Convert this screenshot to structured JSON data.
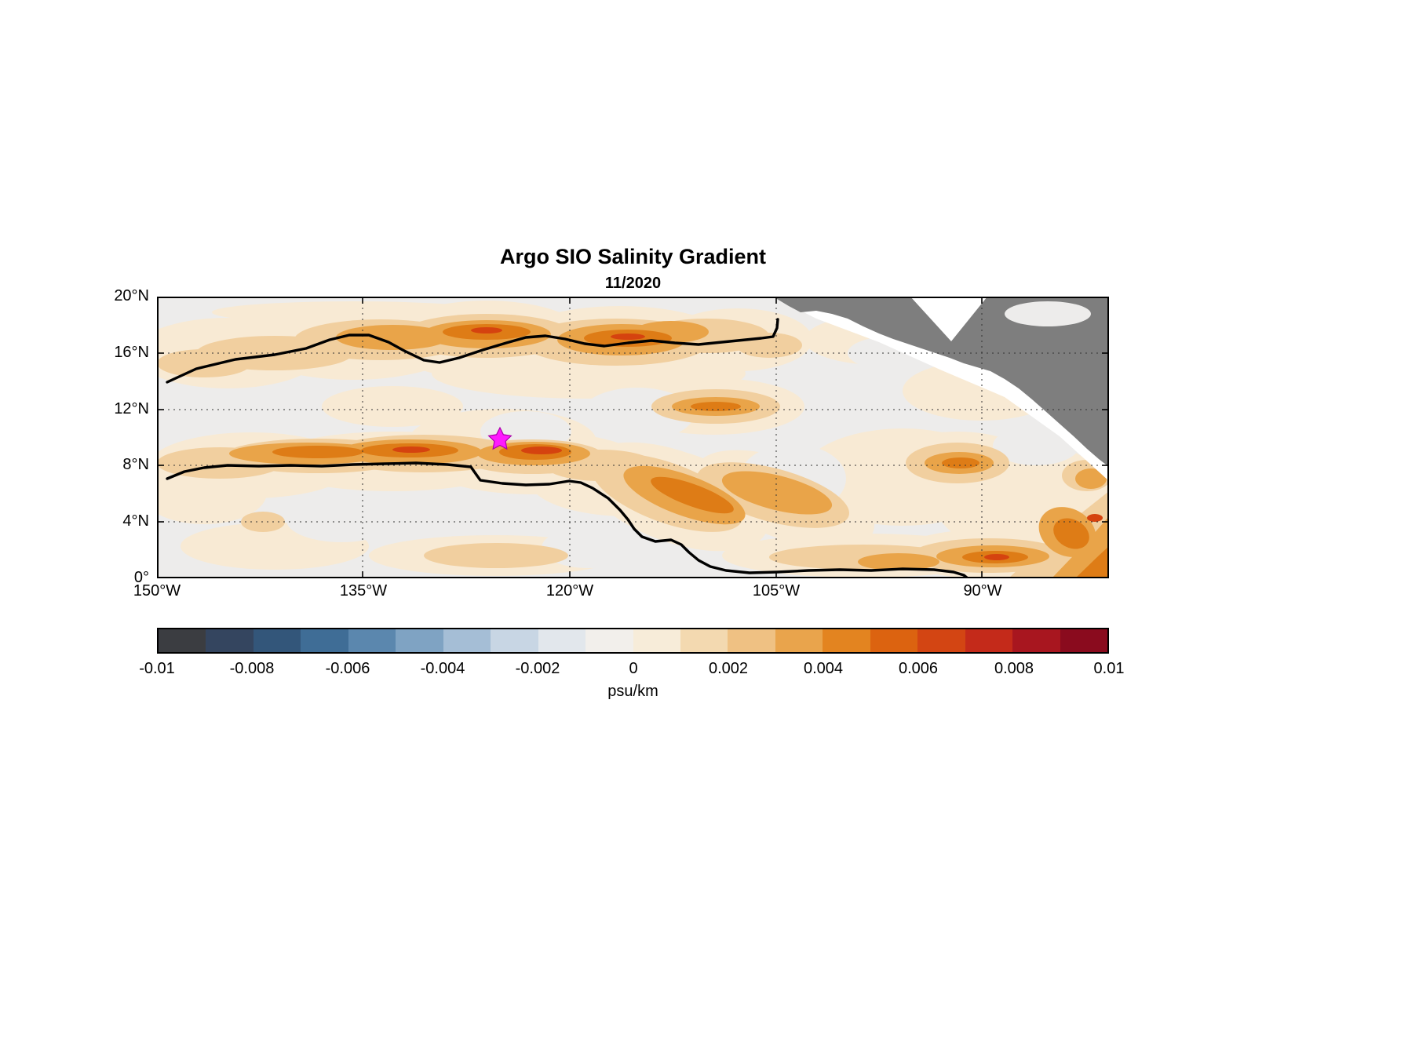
{
  "figure": {
    "title": "Argo SIO Salinity Gradient",
    "subtitle": "11/2020"
  },
  "axes": {
    "x_tick_labels": [
      "150°W",
      "135°W",
      "120°W",
      "105°W",
      "90°W"
    ],
    "y_tick_labels": [
      "20°N",
      "16°N",
      "12°N",
      "8°N",
      "4°N",
      "0°"
    ]
  },
  "colorbar": {
    "label": "psu/km",
    "tick_labels": [
      "-0.01",
      "-0.008",
      "-0.006",
      "-0.004",
      "-0.002",
      "0",
      "0.002",
      "0.004",
      "0.006",
      "0.008",
      "0.01"
    ],
    "min": -0.01,
    "max": 0.01,
    "segment_colors": [
      "#3b3d41",
      "#34455f",
      "#33567a",
      "#3f6d96",
      "#5b87ae",
      "#7fa3c3",
      "#a5bed6",
      "#c8d6e4",
      "#e2e7ec",
      "#f2efeb",
      "#f7ecd9",
      "#f3d9b0",
      "#efc183",
      "#e9a44c",
      "#e38420",
      "#dc6310",
      "#d34513",
      "#c42a1a",
      "#a8161f",
      "#8a0b1e"
    ]
  },
  "map": {
    "marker": {
      "shape": "pentagram",
      "color": "#ff00ff",
      "longitude": "125°W",
      "latitude": "10°N"
    },
    "land_color": "#7e7e7e",
    "land_region": "Mexico and Central America",
    "background_color": "#edeceb"
  },
  "chart_data": {
    "type": "heatmap",
    "title": "Argo SIO Salinity Gradient",
    "subtitle": "11/2020",
    "units": "psu/km",
    "x_axis": {
      "quantity": "longitude",
      "range": [
        "150°W",
        "81°W"
      ],
      "ticks": [
        "150°W",
        "135°W",
        "120°W",
        "105°W",
        "90°W"
      ]
    },
    "y_axis": {
      "quantity": "latitude",
      "range": [
        "0°",
        "20°N"
      ],
      "ticks": [
        "0°",
        "4°N",
        "8°N",
        "12°N",
        "16°N",
        "20°N"
      ]
    },
    "color_range": [
      -0.01,
      0.01
    ],
    "contour_interval": 0.001,
    "field_sign": "entire mapped field is between 0 and about +0.006 psu/km; no negative (blue) values appear",
    "features": [
      {
        "name": "northern-front-band",
        "approx_value": "0.002 to 0.005",
        "description": "Band of enhanced salinity gradient along 15.5-17.5N from 150W to about 107W; strongest orange cores near 139W/17N and 127-124W/16.5N"
      },
      {
        "name": "southern-front-band",
        "approx_value": "0.002 to 0.006",
        "description": "Band along 7.5-8.5N from 150W to about 124W; strongest core near 132-129W/8N with a small red maximum"
      },
      {
        "name": "southeast-diagonal-band",
        "approx_value": "0.003 to 0.004",
        "description": "Orange band sloping southeast from about 121W/6.5N to 110W/4N"
      },
      {
        "name": "equatorial-eastern-band",
        "approx_value": "0.002 to 0.005",
        "description": "Band along 0-1.5N from about 112W to the eastern edge, intensifying near 90-84W and along the Central American coast"
      },
      {
        "name": "isolated-max-12.5N-109W",
        "approx_value": "0.004",
        "description": "Isolated elliptical maximum near 12.5N, 109W"
      },
      {
        "name": "isolated-max-7.5N-90W",
        "approx_value": "0.004",
        "description": "Isolated elliptical maximum near 7.5N, 90W"
      },
      {
        "name": "coastal-maximum",
        "approx_value": "0.004 to 0.006",
        "description": "Strong gradients hugging the coast in the far southeast corner of the map"
      },
      {
        "name": "background",
        "approx_value": "0 to 0.001",
        "description": "Near-zero gradient (pale gray/cream) over the remainder of the domain"
      }
    ],
    "black_contours": [
      {
        "name": "northern-black-contour",
        "path": "starts at 150W/14N, rises to ~17.2N near 137W, dips to ~15.3N near 130W, rises to ~17.3N near 124W, runs along 16.5-17N to ~105W, ends with short northward hook to ~18.5N"
      },
      {
        "name": "southern-black-contour",
        "path": "runs along ~8N from 150W to ~127W, steps down to ~6.5N until ~119W, descends to ~1N by 104W, then follows ~0.5N eastward to ~88W before exiting the bottom edge"
      }
    ],
    "marker": {
      "shape": "pentagram",
      "color": "magenta",
      "longitude": "125°W",
      "latitude": "10°N"
    },
    "land": "Mexico and Central America shown in gray in the upper-right; white no-data strip between the field and the coast; white notch at top for the Bay of Campeche"
  }
}
